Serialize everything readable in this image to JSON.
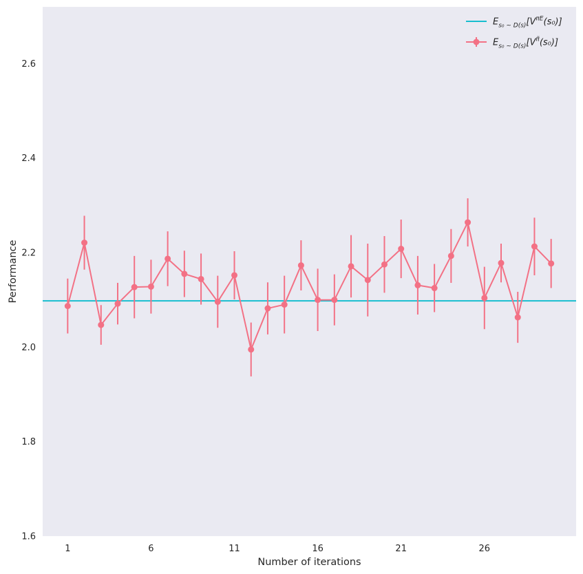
{
  "chart_data": {
    "type": "line",
    "title": "",
    "xlabel": "Number of iterations",
    "ylabel": "Performance",
    "xlim": [
      -0.5,
      31.5
    ],
    "ylim": [
      1.6,
      2.72
    ],
    "x_ticks": [
      {
        "value": 1,
        "label": "1"
      },
      {
        "value": 6,
        "label": "6"
      },
      {
        "value": 11,
        "label": "11"
      },
      {
        "value": 16,
        "label": "16"
      },
      {
        "value": 21,
        "label": "21"
      },
      {
        "value": 26,
        "label": "26"
      }
    ],
    "y_ticks": [
      {
        "value": 1.6,
        "label": "1.6"
      },
      {
        "value": 1.8,
        "label": "1.8"
      },
      {
        "value": 2.0,
        "label": "2.0"
      },
      {
        "value": 2.2,
        "label": "2.2"
      },
      {
        "value": 2.4,
        "label": "2.4"
      },
      {
        "value": 2.6,
        "label": "2.6"
      }
    ],
    "grid": false,
    "legend_position": "top-right",
    "background_color": "#eaeaf2",
    "series": [
      {
        "legend_label": "E_{s0~D(s)}[V^{πE}(s0)]",
        "legend_main": "E",
        "legend_sub": "s₀ ∼ D(s)",
        "legend_rest_before": "[V",
        "legend_sup": "πE",
        "legend_rest_after": "(s₀)]",
        "kind": "hline",
        "color": "#17becf",
        "y": 2.098
      },
      {
        "legend_label": "E_{s0~D(s)}[V^{π̃}(s0)]",
        "legend_main": "E",
        "legend_sub": "s₀ ∼ D(s)",
        "legend_rest_before": "[V",
        "legend_sup": "π̃",
        "legend_rest_after": "(s₀)]",
        "kind": "errorbar-line",
        "color": "#f37185",
        "x": [
          1,
          2,
          3,
          4,
          5,
          6,
          7,
          8,
          9,
          10,
          11,
          12,
          13,
          14,
          15,
          16,
          17,
          18,
          19,
          20,
          21,
          22,
          23,
          24,
          25,
          26,
          27,
          28,
          29,
          30
        ],
        "values": [
          2.087,
          2.221,
          2.047,
          2.092,
          2.127,
          2.128,
          2.187,
          2.155,
          2.144,
          2.096,
          2.152,
          1.995,
          2.082,
          2.09,
          2.173,
          2.1,
          2.1,
          2.171,
          2.142,
          2.175,
          2.208,
          2.131,
          2.125,
          2.193,
          2.264,
          2.104,
          2.178,
          2.063,
          2.213,
          2.177
        ],
        "errors": [
          0.058,
          0.057,
          0.042,
          0.044,
          0.066,
          0.057,
          0.058,
          0.049,
          0.054,
          0.055,
          0.051,
          0.057,
          0.055,
          0.061,
          0.053,
          0.066,
          0.054,
          0.066,
          0.077,
          0.06,
          0.062,
          0.062,
          0.051,
          0.057,
          0.051,
          0.066,
          0.041,
          0.054,
          0.061,
          0.052
        ]
      }
    ]
  }
}
